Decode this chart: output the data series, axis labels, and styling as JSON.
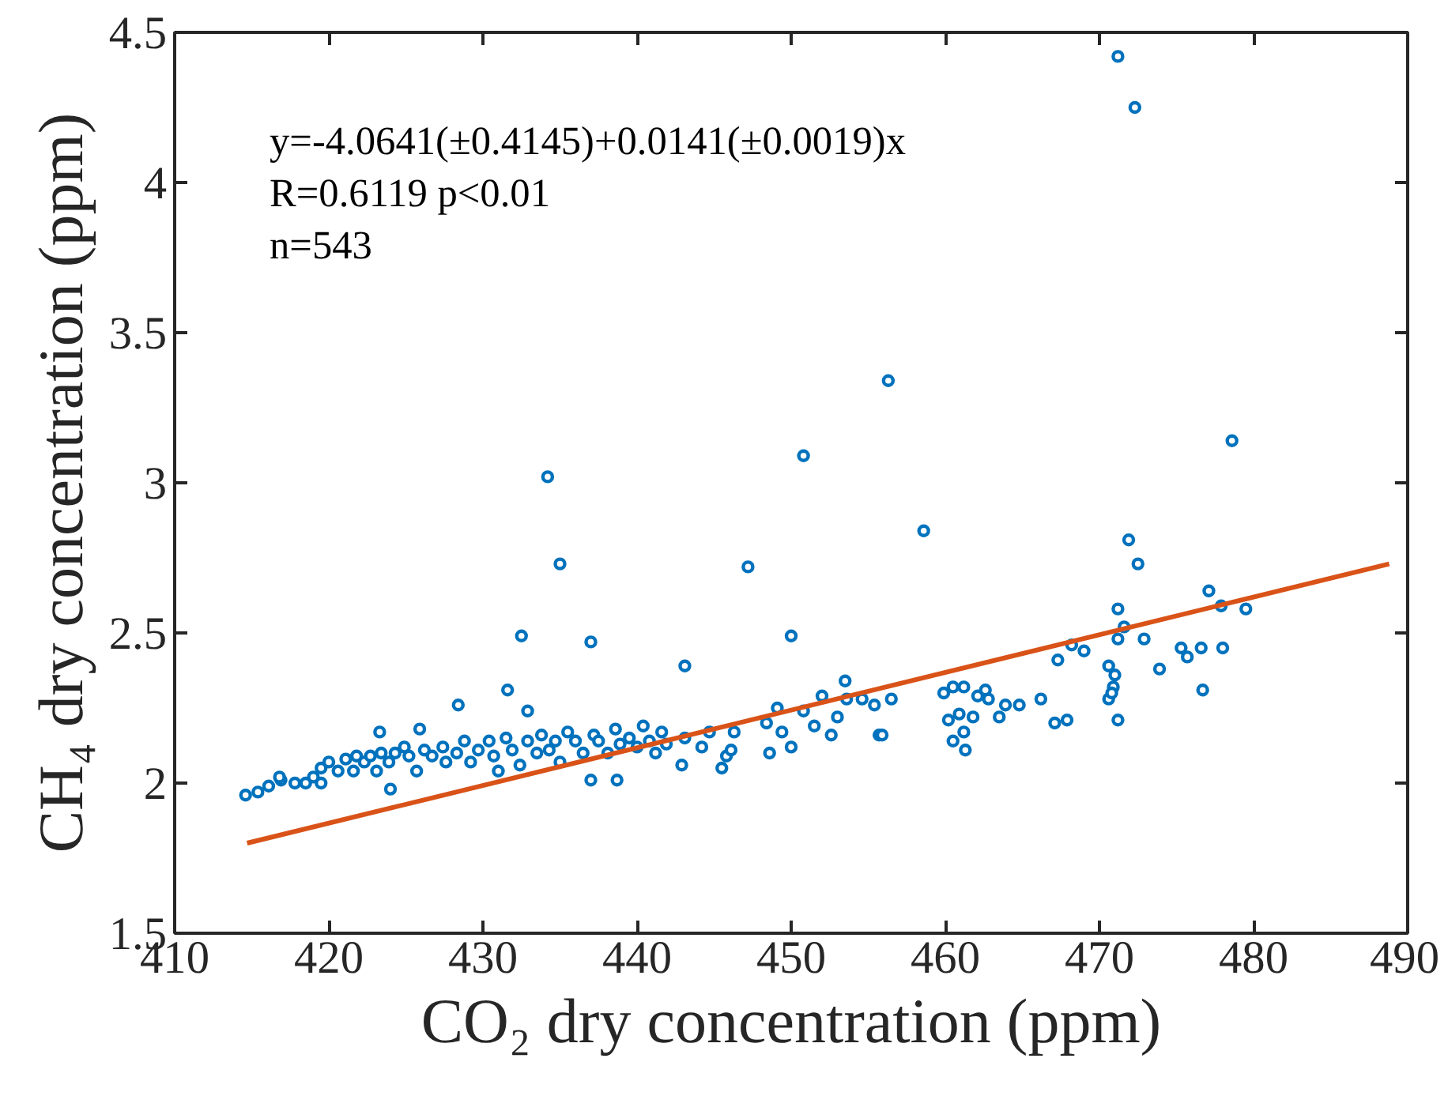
{
  "chart_data": {
    "type": "scatter",
    "xlabel": "CO₂ dry concentration (ppm)",
    "ylabel": "CH₄ dry concentration (ppm)",
    "annotations": [
      "y=-4.0641(±0.4145)+0.0141(±0.0019)x",
      "R=0.6119 p<0.01",
      "n=543"
    ],
    "xlim": [
      410,
      490
    ],
    "xticks": [
      410,
      420,
      430,
      440,
      450,
      460,
      470,
      480,
      490
    ],
    "ylim": [
      1.5,
      4.5
    ],
    "yticks": [
      1.5,
      2,
      2.5,
      3,
      3.5,
      4,
      4.5
    ],
    "grid": false,
    "series": [
      {
        "marker": "circle",
        "color": "#0072bd",
        "x": [
          471.2,
          472.3,
          434.2,
          435.0,
          450.8,
          456.3,
          458.6,
          478.6,
          471.9,
          472.5,
          477.1,
          447.2,
          450.0,
          437.0,
          432.5,
          443.1,
          431.6,
          428.4,
          477.9,
          479.5,
          471.2,
          471.6,
          471.2,
          472.9,
          476.6,
          475.3,
          475.7,
          478.0,
          476.7,
          473.9,
          470.6,
          471.0,
          470.9,
          468.2,
          469.0,
          467.3,
          470.6,
          471.2,
          467.9,
          466.2,
          463.9,
          464.8,
          463.5,
          461.8,
          462.8,
          460.9,
          461.2,
          462.6,
          461.2,
          460.5,
          461.3,
          459.9,
          460.2,
          467.1,
          470.8,
          460.5,
          462.1,
          449.1,
          450.8,
          452.0,
          453.6,
          454.6,
          456.5,
          455.4,
          453.0,
          451.5,
          449.4,
          448.4,
          446.3,
          444.7,
          443.1,
          444.2,
          445.8,
          448.6,
          450.0,
          452.6,
          455.7,
          455.9,
          442.9,
          446.1,
          445.5,
          453.5,
          423.3,
          425.9,
          432.9,
          414.6,
          415.4,
          416.1,
          416.9,
          416.8,
          417.8,
          418.5,
          419.0,
          419.5,
          419.5,
          420.0,
          420.6,
          421.1,
          421.6,
          421.8,
          422.3,
          422.7,
          423.1,
          423.4,
          423.9,
          424.3,
          424.9,
          425.2,
          425.7,
          426.2,
          426.7,
          427.4,
          427.6,
          428.3,
          428.8,
          429.2,
          429.7,
          430.4,
          430.7,
          431.0,
          431.5,
          431.9,
          432.4,
          432.9,
          433.5,
          433.8,
          434.3,
          434.7,
          435.0,
          435.5,
          436.0,
          436.5,
          437.2,
          437.5,
          438.1,
          438.6,
          438.9,
          439.5,
          440.0,
          440.4,
          440.8,
          441.2,
          441.6,
          441.9,
          437.0,
          438.7,
          424.0
        ],
        "values": [
          4.42,
          4.25,
          3.02,
          2.73,
          3.09,
          3.34,
          2.84,
          3.14,
          2.81,
          2.73,
          2.64,
          2.72,
          2.49,
          2.47,
          2.49,
          2.39,
          2.31,
          2.26,
          2.59,
          2.58,
          2.58,
          2.52,
          2.48,
          2.48,
          2.45,
          2.45,
          2.42,
          2.45,
          2.31,
          2.38,
          2.39,
          2.36,
          2.32,
          2.46,
          2.44,
          2.41,
          2.28,
          2.21,
          2.21,
          2.28,
          2.26,
          2.26,
          2.22,
          2.22,
          2.28,
          2.23,
          2.32,
          2.31,
          2.17,
          2.14,
          2.11,
          2.3,
          2.21,
          2.2,
          2.3,
          2.32,
          2.29,
          2.25,
          2.24,
          2.29,
          2.28,
          2.28,
          2.28,
          2.26,
          2.22,
          2.19,
          2.17,
          2.2,
          2.17,
          2.17,
          2.15,
          2.12,
          2.09,
          2.1,
          2.12,
          2.16,
          2.16,
          2.16,
          2.06,
          2.11,
          2.05,
          2.34,
          2.17,
          2.18,
          2.24,
          1.96,
          1.97,
          1.99,
          2.01,
          2.02,
          2.0,
          2.0,
          2.02,
          2.0,
          2.05,
          2.07,
          2.04,
          2.08,
          2.04,
          2.09,
          2.07,
          2.09,
          2.04,
          2.1,
          2.07,
          2.1,
          2.12,
          2.09,
          2.04,
          2.11,
          2.09,
          2.12,
          2.07,
          2.1,
          2.14,
          2.07,
          2.11,
          2.14,
          2.09,
          2.04,
          2.15,
          2.11,
          2.06,
          2.14,
          2.1,
          2.16,
          2.11,
          2.14,
          2.07,
          2.17,
          2.14,
          2.1,
          2.16,
          2.14,
          2.1,
          2.18,
          2.13,
          2.15,
          2.12,
          2.19,
          2.14,
          2.1,
          2.17,
          2.13,
          2.01,
          2.01,
          1.98
        ]
      },
      {
        "type": "line",
        "color": "#d95319",
        "x": [
          414.7,
          488.8
        ],
        "values": [
          1.8,
          2.73
        ],
        "line_style": "solid"
      }
    ]
  }
}
